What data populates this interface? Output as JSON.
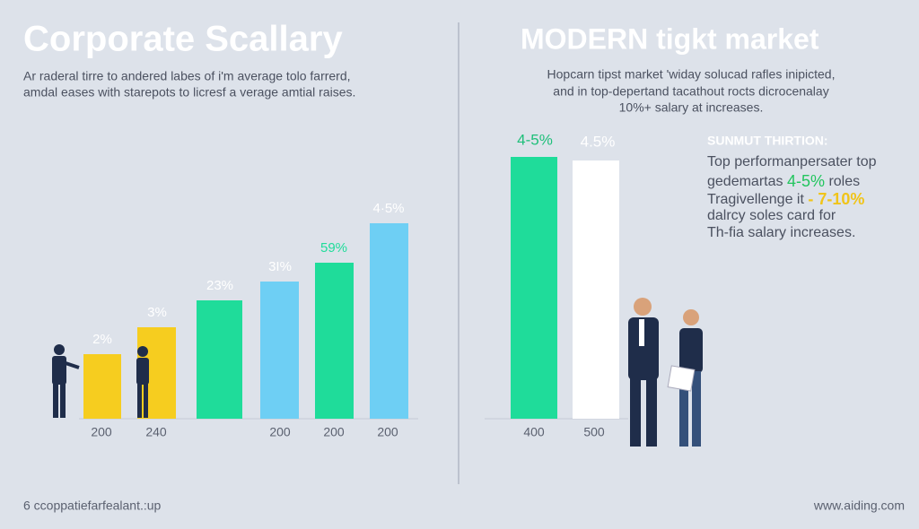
{
  "left": {
    "title": "Corporate Scallary",
    "subtitle": [
      "Ar raderal tirre to andered labes of i'm average tolo farrerd,",
      "amdal eases with starepots to licresf a verage amtial raises."
    ],
    "bars": [
      {
        "label": "2%",
        "axis_label": "200"
      },
      {
        "label": "3%",
        "axis_label": "240"
      },
      {
        "label": "23%"
      },
      {
        "label": "3I%",
        "axis_label": "200"
      },
      {
        "label": "59%",
        "axis_label": "200"
      },
      {
        "label": "4·5%",
        "axis_label": "200"
      }
    ]
  },
  "right": {
    "title": "MODERN tigkt market",
    "subtitle": [
      "Hopcarn tipst market 'widay solucad rafles inipicted,",
      "and in top-depertand tacathout rocts dicrocenalay",
      "10%+ salary at increases."
    ],
    "bars": [
      {
        "label": "4-5%",
        "axis_label": "400"
      },
      {
        "label": "4.5%",
        "axis_label": "500"
      }
    ],
    "panel": {
      "heading": "SUNMUT THIRTION:",
      "lines": [
        [
          "Top performanpersater top"
        ],
        [
          "gedemartas",
          "4-5%",
          "roles"
        ],
        [
          "Tragivellenge it",
          "- 7-10%"
        ],
        [
          "dalrcy soles card for"
        ],
        [
          "Th-fia salary increases."
        ]
      ]
    }
  },
  "footer": {
    "left": "6 ccoppatiefarfealant.:up",
    "right": "www.aiding.com"
  }
}
